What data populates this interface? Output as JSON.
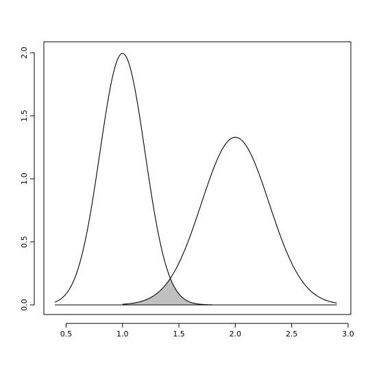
{
  "chart_data": {
    "type": "line",
    "title": "",
    "xlabel": "",
    "ylabel": "",
    "xlim": [
      0.4,
      3.0
    ],
    "ylim": [
      0.0,
      2.0
    ],
    "x_ticks": [
      0.5,
      1.0,
      1.5,
      2.0,
      2.5,
      3.0
    ],
    "x_tick_labels": [
      "0.5",
      "1.0",
      "1.5",
      "2.0",
      "2.5",
      "3.0"
    ],
    "y_ticks": [
      0.0,
      0.5,
      1.0,
      1.5,
      2.0
    ],
    "y_tick_labels": [
      "0.0",
      "0.5",
      "1.0",
      "1.5",
      "2.0"
    ],
    "grid": false,
    "legend": "none",
    "series": [
      {
        "distribution": "normal",
        "mean": 1.0,
        "sd": 0.2,
        "x_range": [
          0.4,
          1.8
        ],
        "color": "#000000"
      },
      {
        "distribution": "normal",
        "mean": 2.0,
        "sd": 0.3,
        "x_range": [
          1.0,
          2.9
        ],
        "color": "#000000"
      }
    ],
    "shaded_region": {
      "description": "overlap",
      "x_range": [
        1.0,
        1.8
      ],
      "intersection_x": 1.43,
      "intersection_y": 0.2,
      "fill": "#c0c0c0"
    },
    "baseline": {
      "y": 0.0,
      "x_range": [
        0.4,
        2.9
      ]
    }
  }
}
